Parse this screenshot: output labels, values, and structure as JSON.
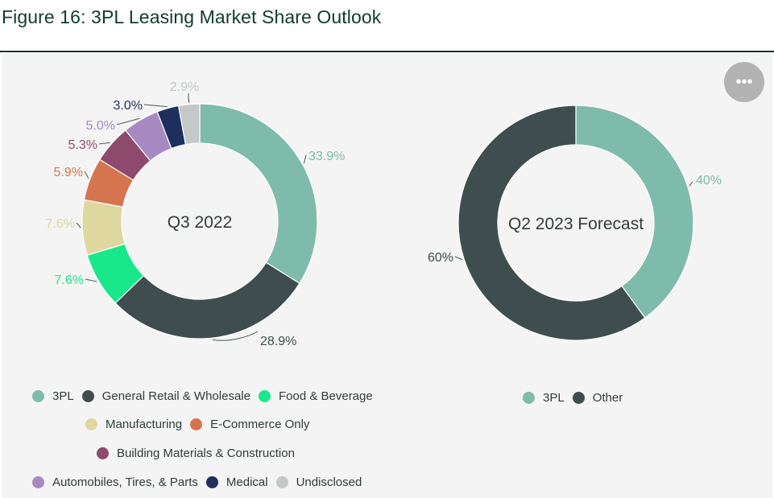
{
  "figure_title": "Figure 16: 3PL Leasing Market Share Outlook",
  "menu_icon": "more-horizontal-icon",
  "menu_glyph": "•••",
  "chart_data": [
    {
      "type": "pie",
      "center_label": "Q3 2022",
      "slices": [
        {
          "name": "3PL",
          "value": 33.9,
          "label": "33.9%",
          "color": "#7fbbab"
        },
        {
          "name": "General Retail & Wholesale",
          "value": 28.9,
          "label": "28.9%",
          "color": "#3f4d4e"
        },
        {
          "name": "Food & Beverage",
          "value": 7.6,
          "label": "7.6%",
          "color": "#19e88a"
        },
        {
          "name": "Manufacturing",
          "value": 7.6,
          "label": "7.6%",
          "color": "#dfd7a0"
        },
        {
          "name": "E-Commerce Only",
          "value": 5.9,
          "label": "5.9%",
          "color": "#d4754f"
        },
        {
          "name": "Building Materials & Construction",
          "value": 5.3,
          "label": "5.3%",
          "color": "#8d4a6c"
        },
        {
          "name": "Automobiles, Tires, & Parts",
          "value": 5.0,
          "label": "5.0%",
          "color": "#a789c1"
        },
        {
          "name": "Medical",
          "value": 3.0,
          "label": "3.0%",
          "color": "#1e2f5e"
        },
        {
          "name": "Undisclosed",
          "value": 2.9,
          "label": "2.9%",
          "color": "#c4c8c8"
        }
      ],
      "legend": {
        "rows": [
          [
            "3PL",
            "General Retail & Wholesale",
            "Food & Beverage"
          ],
          [
            "Manufacturing",
            "E-Commerce Only"
          ],
          [
            "Building Materials & Construction"
          ],
          [
            "Automobiles, Tires, & Parts",
            "Medical",
            "Undisclosed"
          ]
        ]
      }
    },
    {
      "type": "pie",
      "center_label": "Q2 2023 Forecast",
      "slices": [
        {
          "name": "3PL",
          "value": 40,
          "label": "40%",
          "color": "#7fbbab"
        },
        {
          "name": "Other",
          "value": 60,
          "label": "60%",
          "color": "#3f4d4e"
        }
      ],
      "legend": {
        "rows": [
          [
            "3PL",
            "Other"
          ]
        ]
      }
    }
  ]
}
